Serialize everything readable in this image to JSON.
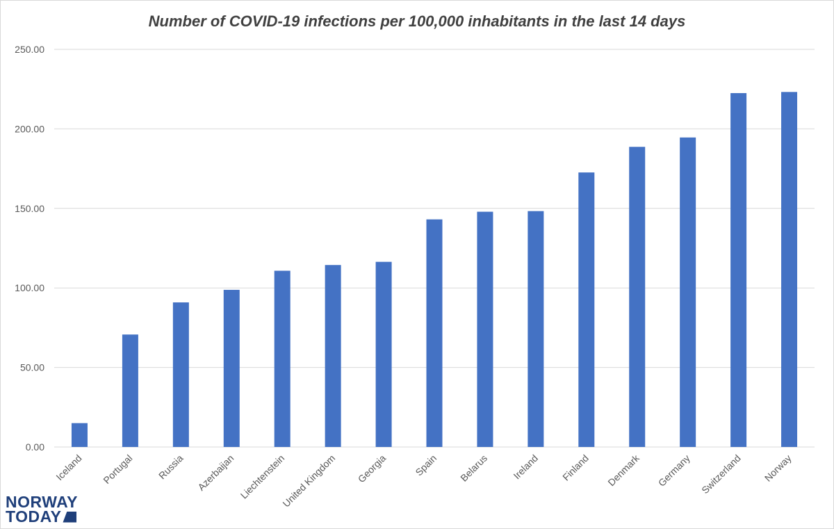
{
  "chart_data": {
    "type": "bar",
    "title": "Number of COVID-19 infections per 100,000 inhabitants in the last 14 days",
    "categories": [
      "Iceland",
      "Portugal",
      "Russia",
      "Azerbaijan",
      "Liechtenstein",
      "United Kingdom",
      "Georgia",
      "Spain",
      "Belarus",
      "Ireland",
      "Finland",
      "Denmark",
      "Germany",
      "Switzerland",
      "Norway"
    ],
    "values": [
      15.0,
      70.7,
      90.9,
      98.8,
      110.8,
      114.4,
      116.4,
      143.1,
      147.9,
      148.3,
      172.6,
      188.7,
      194.6,
      222.5,
      223.2
    ],
    "ylim": [
      0,
      250
    ],
    "yticks": [
      "0.00",
      "50.00",
      "100.00",
      "150.00",
      "200.00",
      "250.00"
    ],
    "grid": true,
    "bar_color": "#4472c4"
  },
  "logo": {
    "line1": "NORWAY",
    "line2": "TODAY"
  }
}
